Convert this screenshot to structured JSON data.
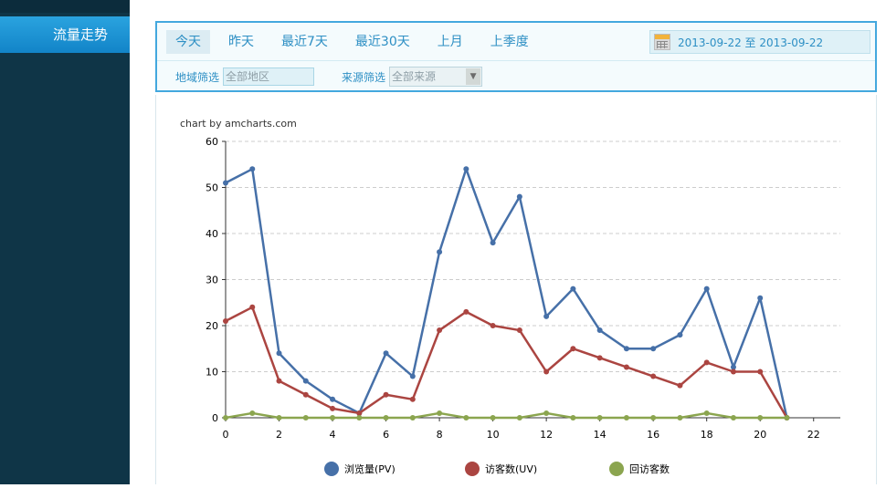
{
  "sidebar": {
    "active_tab": "流量走势"
  },
  "filters": {
    "tabs": [
      {
        "label": "今天",
        "active": true
      },
      {
        "label": "昨天",
        "active": false
      },
      {
        "label": "最近7天",
        "active": false
      },
      {
        "label": "最近30天",
        "active": false
      },
      {
        "label": "上月",
        "active": false
      },
      {
        "label": "上季度",
        "active": false
      }
    ],
    "date_range": "2013-09-22 至  2013-09-22",
    "region_label": "地域筛选",
    "region_value": "全部地区",
    "source_label": "来源筛选",
    "source_value": "全部来源"
  },
  "chart_data": {
    "type": "line",
    "credit": "chart by amcharts.com",
    "x": [
      0,
      1,
      2,
      3,
      4,
      5,
      6,
      7,
      8,
      9,
      10,
      11,
      12,
      13,
      14,
      15,
      16,
      17,
      18,
      19,
      20,
      21
    ],
    "x_ticks": [
      0,
      2,
      4,
      6,
      8,
      10,
      12,
      14,
      16,
      18,
      20,
      22
    ],
    "xlim": [
      0,
      23
    ],
    "ylim": [
      0,
      60
    ],
    "y_ticks": [
      0,
      10,
      20,
      30,
      40,
      50,
      60
    ],
    "grid": true,
    "legend_position": "bottom",
    "series": [
      {
        "name": "浏览量(PV)",
        "color": "#4670a8",
        "values": [
          51,
          54,
          14,
          8,
          4,
          1,
          14,
          9,
          36,
          54,
          38,
          48,
          22,
          28,
          19,
          15,
          15,
          18,
          28,
          11,
          26,
          0
        ]
      },
      {
        "name": "访客数(UV)",
        "color": "#ab4541",
        "values": [
          21,
          24,
          8,
          5,
          2,
          1,
          5,
          4,
          19,
          23,
          20,
          19,
          10,
          15,
          13,
          11,
          9,
          7,
          12,
          10,
          10,
          0
        ]
      },
      {
        "name": "回访客数",
        "color": "#8ba54f",
        "values": [
          0,
          1,
          0,
          0,
          0,
          0,
          0,
          0,
          1,
          0,
          0,
          0,
          1,
          0,
          0,
          0,
          0,
          0,
          1,
          0,
          0,
          0
        ]
      }
    ]
  }
}
